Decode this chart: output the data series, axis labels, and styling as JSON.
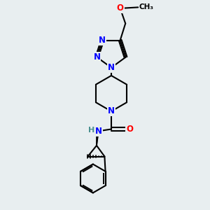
{
  "background_color": "#e8eef0",
  "bond_color": "#000000",
  "N_color": "#0000ff",
  "O_color": "#ff0000",
  "H_color": "#4a9090",
  "line_width": 1.5,
  "font_size": 8.5,
  "xlim": [
    0,
    10
  ],
  "ylim": [
    0,
    10
  ]
}
